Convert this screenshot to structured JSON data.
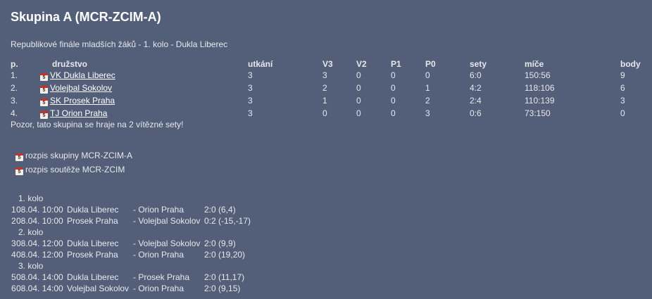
{
  "title": "Skupina A (MCR-ZCIM-A)",
  "subtitle": "Republikové finále mladších žáků - 1. kolo - Dukla Liberec",
  "table": {
    "headers": [
      "p.",
      "družstvo",
      "utkání",
      "V3",
      "V2",
      "P1",
      "P0",
      "sety",
      "míče",
      "body"
    ],
    "rows": [
      [
        "1.",
        "VK Dukla Liberec",
        "3",
        "3",
        "0",
        "0",
        "0",
        "6:0",
        "150:56",
        "9"
      ],
      [
        "2.",
        "Volejbal Sokolov",
        "3",
        "2",
        "0",
        "0",
        "1",
        "4:2",
        "118:106",
        "6"
      ],
      [
        "3.",
        "SK Prosek Praha",
        "3",
        "1",
        "0",
        "0",
        "2",
        "2:4",
        "110:139",
        "3"
      ],
      [
        "4.",
        "TJ Orion Praha",
        "3",
        "0",
        "0",
        "0",
        "3",
        "0:6",
        "73:150",
        "0"
      ]
    ]
  },
  "note": "Pozor, tato skupina se hraje na 2 vítězné sety!",
  "links": [
    "rozpis skupiny MCR-ZCIM-A",
    "rozpis soutěže MCR-ZCIM"
  ],
  "icon": "calendar-icon",
  "schedule": [
    {
      "round": "1. kolo",
      "matches": [
        [
          "1",
          "08.04. 10:00",
          "Dukla Liberec",
          "- Orion Praha",
          "2:0 (6,4)"
        ],
        [
          "2",
          "08.04. 10:00",
          "Prosek Praha",
          "- Volejbal Sokolov",
          "0:2 (-15,-17)"
        ]
      ]
    },
    {
      "round": "2. kolo",
      "matches": [
        [
          "3",
          "08.04. 12:00",
          "Dukla Liberec",
          "- Volejbal Sokolov",
          "2:0 (9,9)"
        ],
        [
          "4",
          "08.04. 12:00",
          "Prosek Praha",
          "- Orion Praha",
          "2:0 (19,20)"
        ]
      ]
    },
    {
      "round": "3. kolo",
      "matches": [
        [
          "5",
          "08.04. 14:00",
          "Dukla Liberec",
          "- Prosek Praha",
          "2:0 (11,17)"
        ],
        [
          "6",
          "08.04. 14:00",
          "Volejbal Sokolov",
          "- Orion Praha",
          "2:0 (9,15)"
        ]
      ]
    }
  ]
}
